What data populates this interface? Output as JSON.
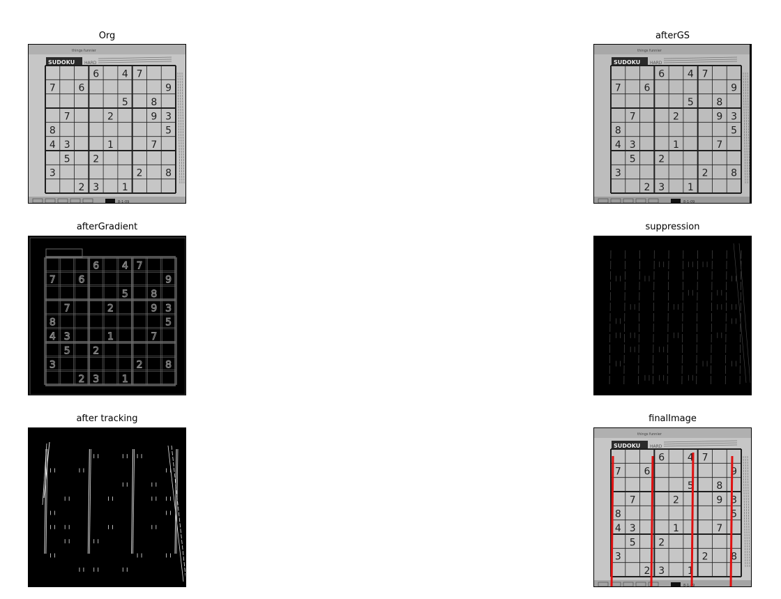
{
  "panels": [
    {
      "title": "Org"
    },
    {
      "title": "afterGS"
    },
    {
      "title": "afterGradient"
    },
    {
      "title": "suppression"
    },
    {
      "title": "after tracking"
    },
    {
      "title": "finalImage"
    }
  ],
  "sudoku": {
    "header_label": "SUDOKU",
    "level_label": "HARD",
    "intro_text": "things funnier",
    "footer_code": "8-1-09",
    "digits": [
      {
        "row": 0,
        "col": 3,
        "v": "6"
      },
      {
        "row": 0,
        "col": 5,
        "v": "4"
      },
      {
        "row": 0,
        "col": 6,
        "v": "7"
      },
      {
        "row": 1,
        "col": 0,
        "v": "7"
      },
      {
        "row": 1,
        "col": 2,
        "v": "6"
      },
      {
        "row": 1,
        "col": 8,
        "v": "9"
      },
      {
        "row": 2,
        "col": 5,
        "v": "5"
      },
      {
        "row": 2,
        "col": 7,
        "v": "8"
      },
      {
        "row": 3,
        "col": 1,
        "v": "7"
      },
      {
        "row": 3,
        "col": 4,
        "v": "2"
      },
      {
        "row": 3,
        "col": 7,
        "v": "9"
      },
      {
        "row": 3,
        "col": 8,
        "v": "3"
      },
      {
        "row": 4,
        "col": 0,
        "v": "8"
      },
      {
        "row": 4,
        "col": 8,
        "v": "5"
      },
      {
        "row": 5,
        "col": 0,
        "v": "4"
      },
      {
        "row": 5,
        "col": 1,
        "v": "3"
      },
      {
        "row": 5,
        "col": 4,
        "v": "1"
      },
      {
        "row": 5,
        "col": 7,
        "v": "7"
      },
      {
        "row": 6,
        "col": 1,
        "v": "5"
      },
      {
        "row": 6,
        "col": 3,
        "v": "2"
      },
      {
        "row": 7,
        "col": 0,
        "v": "3"
      },
      {
        "row": 7,
        "col": 6,
        "v": "2"
      },
      {
        "row": 7,
        "col": 8,
        "v": "8"
      },
      {
        "row": 8,
        "col": 2,
        "v": "2"
      },
      {
        "row": 8,
        "col": 3,
        "v": "3"
      },
      {
        "row": 8,
        "col": 5,
        "v": "1"
      }
    ]
  },
  "colors": {
    "paper": "#c8c8c8",
    "ink": "#222222",
    "hough_line": "#e01010"
  }
}
